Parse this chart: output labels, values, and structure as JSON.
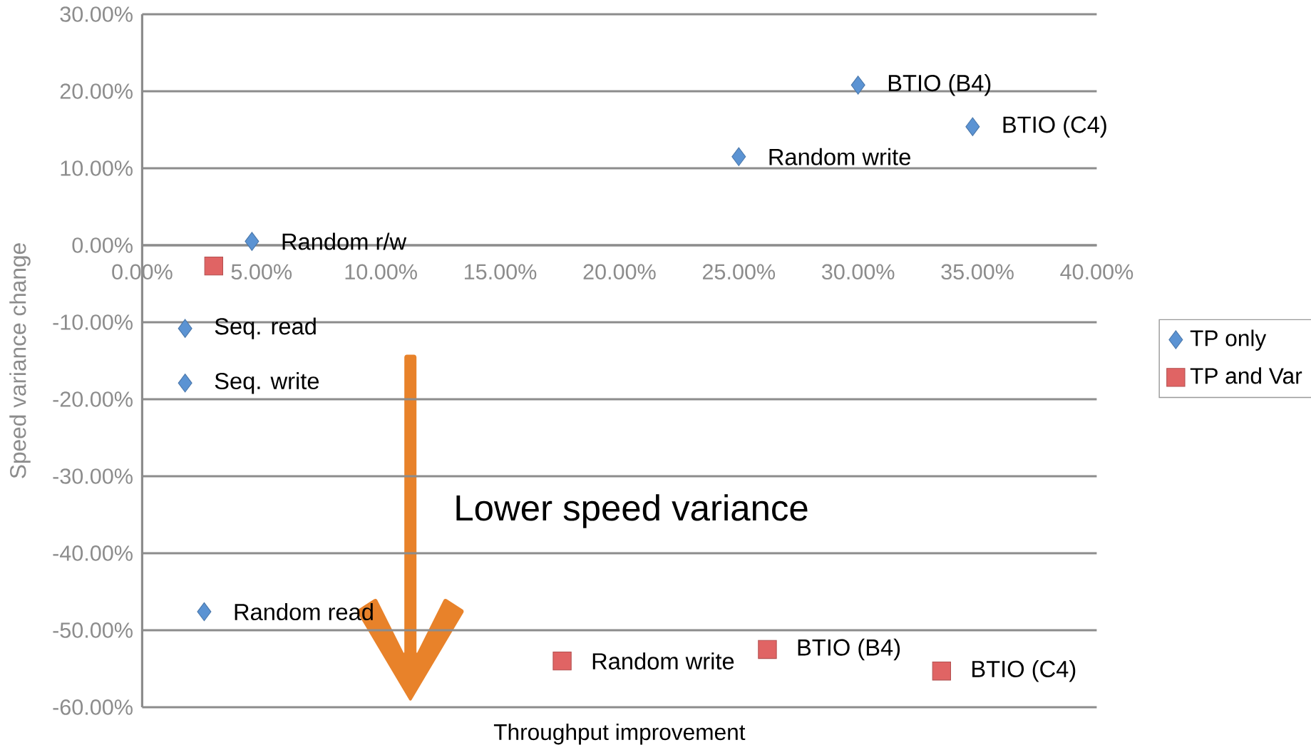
{
  "chart_data": {
    "type": "scatter",
    "xlabel": "Throughput improvement",
    "ylabel": "Speed variance change",
    "xlim": [
      0,
      40
    ],
    "ylim": [
      -60,
      30
    ],
    "xticks": [
      {
        "value": 0,
        "label": "0.00%"
      },
      {
        "value": 5,
        "label": "5.00%"
      },
      {
        "value": 10,
        "label": "10.00%"
      },
      {
        "value": 15,
        "label": "15.00%"
      },
      {
        "value": 20,
        "label": "20.00%"
      },
      {
        "value": 25,
        "label": "25.00%"
      },
      {
        "value": 30,
        "label": "30.00%"
      },
      {
        "value": 35,
        "label": "35.00%"
      },
      {
        "value": 40,
        "label": "40.00%"
      }
    ],
    "yticks": [
      {
        "value": -60,
        "label": "-60.00%"
      },
      {
        "value": -50,
        "label": "-50.00%"
      },
      {
        "value": -40,
        "label": "-40.00%"
      },
      {
        "value": -30,
        "label": "-30.00%"
      },
      {
        "value": -20,
        "label": "-20.00%"
      },
      {
        "value": -10,
        "label": "-10.00%"
      },
      {
        "value": 0,
        "label": "0.00%"
      },
      {
        "value": 10,
        "label": "10.00%"
      },
      {
        "value": 20,
        "label": "20.00%"
      },
      {
        "value": 30,
        "label": "30.00%"
      }
    ],
    "grid": "y",
    "legend": "right",
    "series": [
      {
        "name": "TP only",
        "color": "#5b93d3",
        "marker": "diamond",
        "x": [
          30.0,
          34.8,
          25.0,
          4.6,
          1.8,
          1.8,
          2.6
        ],
        "values": [
          20.8,
          15.4,
          11.5,
          0.5,
          -10.8,
          -17.9,
          -47.6
        ]
      },
      {
        "name": "TP and Var",
        "color": "#e06464",
        "marker": "square",
        "x": [
          3.0,
          17.6,
          26.2,
          33.5
        ],
        "values": [
          -2.7,
          -54.0,
          -52.5,
          -55.3
        ]
      }
    ],
    "annotations": [
      {
        "text": "BTIO (B4)",
        "x": 30.0,
        "y": 20.8
      },
      {
        "text": "BTIO (C4)",
        "x": 34.8,
        "y": 15.4
      },
      {
        "text": "Random write",
        "x": 25.0,
        "y": 11.5
      },
      {
        "text": "Random r/w",
        "x": 4.6,
        "y": 0.5
      },
      {
        "text": "Seq. read",
        "x": 1.8,
        "y": -10.8
      },
      {
        "text": "Seq. write",
        "x": 1.8,
        "y": -17.9
      },
      {
        "text": "Random read",
        "x": 2.6,
        "y": -47.6
      },
      {
        "text": "Random write",
        "x": 17.6,
        "y": -54.0
      },
      {
        "text": "BTIO (B4)",
        "x": 26.2,
        "y": -52.5
      },
      {
        "text": "BTIO (C4)",
        "x": 33.5,
        "y": -55.3
      },
      "Lower speed variance"
    ]
  }
}
